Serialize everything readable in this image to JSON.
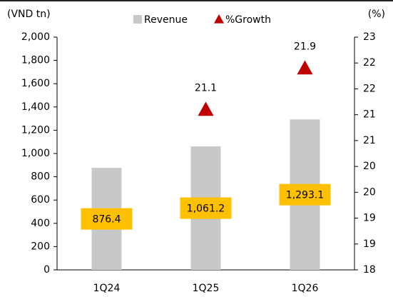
{
  "chart_data": {
    "type": "bar",
    "y_label": "(VND tn)",
    "y2_label": "(%)",
    "categories": [
      "1Q24",
      "1Q25",
      "1Q26"
    ],
    "series": [
      {
        "name": "Revenue",
        "color": "#c8c8c8",
        "values": [
          876.4,
          1061.2,
          1293.1
        ],
        "value_labels": [
          "876.4",
          "1,061.2",
          "1,293.1"
        ],
        "label_color": "#ffc000"
      },
      {
        "name": "%Growth",
        "color": "#c00000",
        "type": "scatter",
        "marker": "triangle",
        "axis": "y2",
        "values": [
          null,
          21.1,
          21.9
        ]
      }
    ],
    "ylim": [
      0,
      2000
    ],
    "yticks": [
      0,
      200,
      400,
      600,
      800,
      {
        "value": 1000,
        "label": "1,000"
      },
      {
        "value": 1200,
        "label": "1,200"
      },
      {
        "value": 1400,
        "label": "1,400"
      },
      {
        "value": 1600,
        "label": "1,600"
      },
      {
        "value": 1800,
        "label": "1,800"
      },
      {
        "value": 2000,
        "label": "2,000"
      }
    ],
    "y2lim": [
      18,
      22.5
    ],
    "y2ticks": [
      18,
      {
        "value": 18.5,
        "label": "19"
      },
      19,
      {
        "value": 19.5,
        "label": "20"
      },
      20,
      {
        "value": 20.5,
        "label": "21"
      },
      21,
      {
        "value": 21.5,
        "label": "22"
      },
      22,
      {
        "value": 22.5,
        "label": "23"
      }
    ],
    "grid": false,
    "legend": "top"
  }
}
